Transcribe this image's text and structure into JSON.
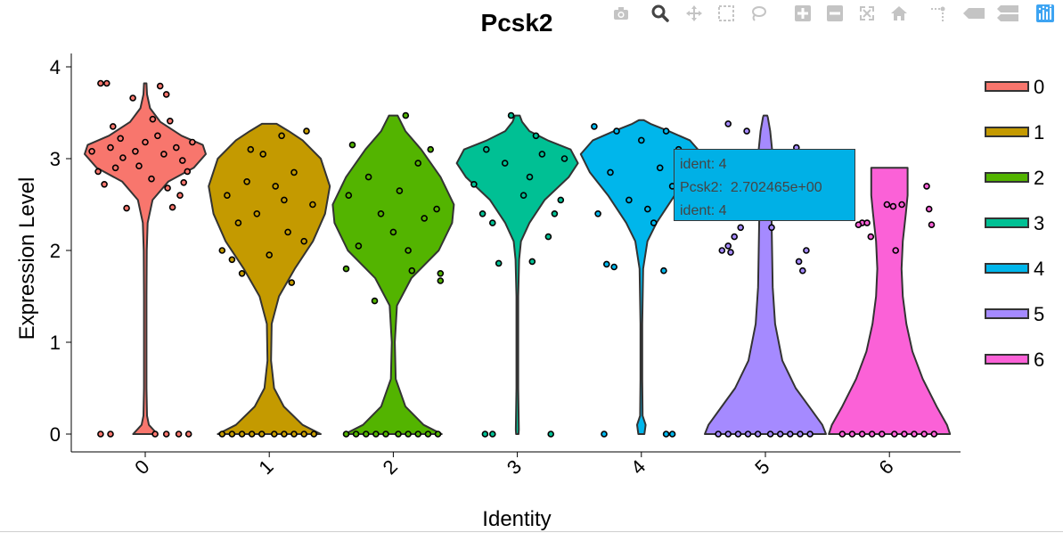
{
  "modebar": {
    "icons": [
      "camera-icon",
      "zoom-icon",
      "pan-icon",
      "box-select-icon",
      "lasso-icon",
      "zoom-in-icon",
      "zoom-out-icon",
      "autoscale-icon",
      "reset-axes-icon",
      "spike-lines-icon",
      "hover-closest-icon",
      "hover-compare-icon",
      "plotly-logo-icon"
    ],
    "color": "#c4c4c4",
    "logo_color": "#3da4f2"
  },
  "tooltip": {
    "line1": "ident: 4",
    "line2": "Pcsk2:  2.702465e+00",
    "line3": "ident: 4",
    "color": "#00b0e6"
  },
  "chart_data": {
    "type": "violin",
    "title": "Pcsk2",
    "xlabel": "Identity",
    "ylabel": "Expression Level",
    "categories": [
      "0",
      "1",
      "2",
      "3",
      "4",
      "5",
      "6"
    ],
    "yticks": [
      0,
      1,
      2,
      3,
      4
    ],
    "ylim": [
      -0.2,
      4.1
    ],
    "grid": false,
    "legend_position": "right",
    "series": [
      {
        "name": "0",
        "color": "#f8766d",
        "min": 0,
        "max": 3.82,
        "density": [
          [
            0,
            0.2
          ],
          [
            0.1,
            0.06
          ],
          [
            0.2,
            0.03
          ],
          [
            0.5,
            0.02
          ],
          [
            1.0,
            0.02
          ],
          [
            1.5,
            0.02
          ],
          [
            2.0,
            0.025
          ],
          [
            2.3,
            0.04
          ],
          [
            2.55,
            0.12
          ],
          [
            2.75,
            0.38
          ],
          [
            2.9,
            0.8
          ],
          [
            3.05,
            1.0
          ],
          [
            3.15,
            0.95
          ],
          [
            3.25,
            0.6
          ],
          [
            3.4,
            0.25
          ],
          [
            3.55,
            0.08
          ],
          [
            3.7,
            0.03
          ],
          [
            3.82,
            0.02
          ]
        ],
        "points": [
          [
            -0.36,
            3.82
          ],
          [
            -0.31,
            3.82
          ],
          [
            0.12,
            3.79
          ],
          [
            -0.1,
            3.66
          ],
          [
            0.17,
            3.7
          ],
          [
            0.06,
            3.43
          ],
          [
            0.2,
            3.41
          ],
          [
            -0.26,
            3.35
          ],
          [
            0.25,
            3.12
          ],
          [
            -0.43,
            3.08
          ],
          [
            -0.18,
            3.01
          ],
          [
            0.0,
            3.18
          ],
          [
            0.3,
            2.98
          ],
          [
            -0.38,
            2.86
          ],
          [
            0.34,
            2.86
          ],
          [
            -0.15,
            2.46
          ],
          [
            0.22,
            2.47
          ],
          [
            0.28,
            2.6
          ],
          [
            -0.05,
            2.92
          ],
          [
            0.1,
            3.25
          ],
          [
            -0.28,
            3.12
          ],
          [
            0.15,
            3.05
          ],
          [
            -0.2,
            3.22
          ],
          [
            0.05,
            2.78
          ],
          [
            -0.33,
            2.72
          ],
          [
            0.38,
            3.18
          ],
          [
            -0.08,
            3.08
          ],
          [
            0.18,
            2.68
          ],
          [
            -0.24,
            2.9
          ],
          [
            0.31,
            2.74
          ],
          [
            -0.36,
            0
          ],
          [
            -0.28,
            0
          ],
          [
            0.08,
            0
          ],
          [
            0.17,
            0
          ],
          [
            0.27,
            0
          ],
          [
            0.35,
            0
          ]
        ]
      },
      {
        "name": "1",
        "color": "#c49a00",
        "min": 0,
        "max": 3.38,
        "density": [
          [
            0,
            0.85
          ],
          [
            0.1,
            0.55
          ],
          [
            0.3,
            0.24
          ],
          [
            0.5,
            0.08
          ],
          [
            0.8,
            0.03
          ],
          [
            1.2,
            0.04
          ],
          [
            1.5,
            0.16
          ],
          [
            1.8,
            0.42
          ],
          [
            2.1,
            0.72
          ],
          [
            2.4,
            0.92
          ],
          [
            2.7,
            1.0
          ],
          [
            3.0,
            0.85
          ],
          [
            3.2,
            0.55
          ],
          [
            3.3,
            0.32
          ],
          [
            3.38,
            0.12
          ]
        ],
        "points": [
          [
            -0.38,
            2.0
          ],
          [
            -0.3,
            1.9
          ],
          [
            -0.22,
            1.75
          ],
          [
            0.18,
            1.65
          ],
          [
            0.0,
            1.95
          ],
          [
            -0.15,
            3.1
          ],
          [
            0.1,
            3.25
          ],
          [
            0.3,
            3.3
          ],
          [
            -0.34,
            2.6
          ],
          [
            0.35,
            2.5
          ],
          [
            -0.1,
            2.4
          ],
          [
            0.15,
            2.2
          ],
          [
            0.2,
            2.85
          ],
          [
            -0.25,
            2.3
          ],
          [
            0.05,
            2.7
          ],
          [
            -0.05,
            3.05
          ],
          [
            0.28,
            2.1
          ],
          [
            -0.18,
            2.75
          ],
          [
            0.12,
            2.55
          ],
          [
            -0.38,
            0
          ],
          [
            -0.3,
            0
          ],
          [
            -0.22,
            0
          ],
          [
            -0.14,
            0
          ],
          [
            -0.06,
            0
          ],
          [
            0.04,
            0
          ],
          [
            0.12,
            0
          ],
          [
            0.2,
            0
          ],
          [
            0.28,
            0
          ],
          [
            0.36,
            0
          ]
        ]
      },
      {
        "name": "2",
        "color": "#53b400",
        "min": 0,
        "max": 3.47,
        "density": [
          [
            0,
            0.8
          ],
          [
            0.1,
            0.5
          ],
          [
            0.3,
            0.2
          ],
          [
            0.6,
            0.04
          ],
          [
            1.0,
            0.025
          ],
          [
            1.4,
            0.06
          ],
          [
            1.7,
            0.3
          ],
          [
            2.0,
            0.75
          ],
          [
            2.3,
            0.97
          ],
          [
            2.5,
            1.0
          ],
          [
            2.8,
            0.78
          ],
          [
            3.1,
            0.46
          ],
          [
            3.3,
            0.2
          ],
          [
            3.47,
            0.07
          ]
        ],
        "points": [
          [
            -0.38,
            1.8
          ],
          [
            -0.15,
            1.45
          ],
          [
            0.15,
            1.78
          ],
          [
            0.38,
            1.75
          ],
          [
            0.38,
            1.67
          ],
          [
            -0.33,
            3.15
          ],
          [
            0.1,
            3.47
          ],
          [
            0.3,
            3.1
          ],
          [
            -0.36,
            2.6
          ],
          [
            0.35,
            2.45
          ],
          [
            0.0,
            2.2
          ],
          [
            -0.2,
            2.8
          ],
          [
            0.2,
            2.95
          ],
          [
            -0.1,
            2.4
          ],
          [
            0.12,
            2.0
          ],
          [
            0.25,
            2.35
          ],
          [
            -0.28,
            2.05
          ],
          [
            0.05,
            2.65
          ],
          [
            -0.38,
            0
          ],
          [
            -0.3,
            0
          ],
          [
            -0.22,
            0
          ],
          [
            -0.14,
            0
          ],
          [
            -0.06,
            0
          ],
          [
            0.04,
            0
          ],
          [
            0.12,
            0
          ],
          [
            0.2,
            0
          ],
          [
            0.28,
            0
          ],
          [
            0.36,
            0
          ]
        ]
      },
      {
        "name": "3",
        "color": "#00c094",
        "min": 0,
        "max": 3.47,
        "density": [
          [
            0,
            0.02
          ],
          [
            0.05,
            0.025
          ],
          [
            0.5,
            0.015
          ],
          [
            1.5,
            0.015
          ],
          [
            1.9,
            0.03
          ],
          [
            2.1,
            0.06
          ],
          [
            2.3,
            0.2
          ],
          [
            2.55,
            0.45
          ],
          [
            2.8,
            0.85
          ],
          [
            2.95,
            1.0
          ],
          [
            3.1,
            0.88
          ],
          [
            3.2,
            0.5
          ],
          [
            3.3,
            0.2
          ],
          [
            3.4,
            0.08
          ],
          [
            3.47,
            0.04
          ]
        ],
        "points": [
          [
            -0.15,
            1.86
          ],
          [
            0.12,
            1.88
          ],
          [
            -0.2,
            2.3
          ],
          [
            0.25,
            2.15
          ],
          [
            0.35,
            2.55
          ],
          [
            -0.35,
            2.72
          ],
          [
            0.2,
            3.05
          ],
          [
            -0.05,
            3.47
          ],
          [
            0.15,
            3.25
          ],
          [
            -0.28,
            2.4
          ],
          [
            0.3,
            2.4
          ],
          [
            0.1,
            2.8
          ],
          [
            -0.1,
            2.95
          ],
          [
            0.38,
            3.0
          ],
          [
            -0.25,
            3.1
          ],
          [
            0.05,
            2.6
          ],
          [
            -0.26,
            0
          ],
          [
            -0.2,
            0
          ],
          [
            0.27,
            0
          ]
        ]
      },
      {
        "name": "4",
        "color": "#00b6eb",
        "min": 0,
        "max": 3.42,
        "density": [
          [
            0,
            0.05
          ],
          [
            0.1,
            0.07
          ],
          [
            0.2,
            0.02
          ],
          [
            0.6,
            0.015
          ],
          [
            1.2,
            0.015
          ],
          [
            1.8,
            0.03
          ],
          [
            2.1,
            0.1
          ],
          [
            2.3,
            0.25
          ],
          [
            2.6,
            0.55
          ],
          [
            2.85,
            0.85
          ],
          [
            3.05,
            1.0
          ],
          [
            3.2,
            0.8
          ],
          [
            3.3,
            0.45
          ],
          [
            3.38,
            0.15
          ],
          [
            3.42,
            0.04
          ]
        ],
        "points": [
          [
            -0.28,
            1.85
          ],
          [
            -0.22,
            1.82
          ],
          [
            0.18,
            1.78
          ],
          [
            -0.35,
            2.4
          ],
          [
            0.1,
            2.3
          ],
          [
            0.25,
            2.7
          ],
          [
            -0.2,
            3.3
          ],
          [
            0.0,
            3.2
          ],
          [
            0.2,
            3.3
          ],
          [
            -0.38,
            3.35
          ],
          [
            0.15,
            2.9
          ],
          [
            -0.1,
            2.55
          ],
          [
            0.3,
            3.1
          ],
          [
            -0.25,
            2.85
          ],
          [
            0.05,
            2.45
          ],
          [
            -0.3,
            0
          ],
          [
            0.2,
            0
          ],
          [
            0.25,
            0
          ]
        ]
      },
      {
        "name": "5",
        "color": "#a58aff",
        "min": 0,
        "max": 3.47,
        "density": [
          [
            0,
            1.0
          ],
          [
            0.1,
            0.94
          ],
          [
            0.3,
            0.72
          ],
          [
            0.5,
            0.5
          ],
          [
            0.8,
            0.28
          ],
          [
            1.2,
            0.16
          ],
          [
            1.6,
            0.12
          ],
          [
            2.0,
            0.11
          ],
          [
            2.4,
            0.1
          ],
          [
            2.8,
            0.11
          ],
          [
            3.1,
            0.11
          ],
          [
            3.3,
            0.08
          ],
          [
            3.45,
            0.04
          ],
          [
            3.47,
            0.03
          ]
        ],
        "points": [
          [
            -0.3,
            3.38
          ],
          [
            -0.22,
            2.95
          ],
          [
            -0.15,
            3.3
          ],
          [
            0.25,
            3.12
          ],
          [
            0.33,
            2.0
          ],
          [
            0.27,
            1.88
          ],
          [
            0.3,
            1.78
          ],
          [
            -0.3,
            2.05
          ],
          [
            -0.25,
            2.15
          ],
          [
            -0.2,
            2.25
          ],
          [
            -0.35,
            2.0
          ],
          [
            -0.28,
            1.98
          ],
          [
            0.05,
            2.25
          ],
          [
            0.1,
            2.45
          ],
          [
            -0.38,
            0
          ],
          [
            -0.3,
            0
          ],
          [
            -0.22,
            0
          ],
          [
            -0.14,
            0
          ],
          [
            -0.06,
            0
          ],
          [
            0.04,
            0
          ],
          [
            0.12,
            0
          ],
          [
            0.2,
            0
          ],
          [
            0.28,
            0
          ],
          [
            0.36,
            0
          ]
        ]
      },
      {
        "name": "6",
        "color": "#fb61d7",
        "min": 0,
        "max": 2.9,
        "density": [
          [
            0,
            1.0
          ],
          [
            0.1,
            0.95
          ],
          [
            0.3,
            0.78
          ],
          [
            0.6,
            0.55
          ],
          [
            0.9,
            0.38
          ],
          [
            1.2,
            0.28
          ],
          [
            1.5,
            0.22
          ],
          [
            1.8,
            0.2
          ],
          [
            2.1,
            0.22
          ],
          [
            2.4,
            0.27
          ],
          [
            2.6,
            0.3
          ],
          [
            2.8,
            0.3
          ],
          [
            2.9,
            0.3
          ]
        ],
        "points": [
          [
            -0.22,
            2.3
          ],
          [
            -0.25,
            2.28
          ],
          [
            -0.18,
            2.3
          ],
          [
            -0.02,
            2.5
          ],
          [
            0.03,
            2.48
          ],
          [
            0.1,
            2.5
          ],
          [
            0.3,
            2.7
          ],
          [
            0.32,
            2.45
          ],
          [
            0.34,
            2.28
          ],
          [
            -0.15,
            2.15
          ],
          [
            0.05,
            2.0
          ],
          [
            -0.38,
            0
          ],
          [
            -0.3,
            0
          ],
          [
            -0.22,
            0
          ],
          [
            -0.14,
            0
          ],
          [
            -0.06,
            0
          ],
          [
            0.04,
            0
          ],
          [
            0.12,
            0
          ],
          [
            0.2,
            0
          ],
          [
            0.28,
            0
          ],
          [
            0.36,
            0
          ]
        ]
      }
    ]
  }
}
